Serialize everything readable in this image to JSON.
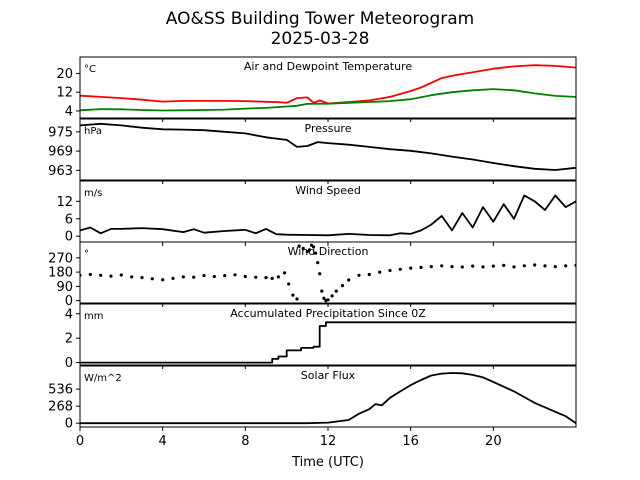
{
  "title_line1": "AO&SS Building Tower Meteorogram",
  "title_line2": "2025-03-28",
  "chart_data": {
    "type": "line",
    "xlabel": "Time (UTC)",
    "xlim": [
      0,
      24
    ],
    "xticks": [
      0,
      4,
      8,
      12,
      16,
      20
    ],
    "panels": [
      {
        "id": "temp",
        "title": "Air and Dewpoint Temperature",
        "unit": "°C",
        "ylim": [
          1,
          27
        ],
        "yticks": [
          4,
          12,
          20
        ],
        "series": [
          {
            "color": "#ff0000",
            "x": [
              0,
              1,
              2,
              3,
              4,
              5,
              6,
              7,
              8,
              9,
              9.5,
              10,
              10.5,
              11,
              11.3,
              11.6,
              12,
              12.5,
              13,
              14,
              15,
              16,
              16.5,
              17,
              17.5,
              18,
              19,
              20,
              21,
              22,
              23,
              24
            ],
            "y": [
              10.5,
              10,
              9.5,
              8.8,
              8,
              8.3,
              8.3,
              8.3,
              8.2,
              7.9,
              7.8,
              7.5,
              9.5,
              9.8,
              7.5,
              8.5,
              7.2,
              7.5,
              7.8,
              8.5,
              10,
              12.5,
              14,
              16,
              18,
              19,
              20.5,
              22,
              23,
              23.5,
              23.2,
              22.5
            ]
          },
          {
            "color": "#008000",
            "x": [
              0,
              1,
              2,
              3,
              4,
              5,
              6,
              7,
              8,
              9,
              10,
              10.5,
              11,
              12,
              13,
              14,
              15,
              16,
              17,
              18,
              19,
              20,
              21,
              22,
              23,
              24
            ],
            "y": [
              4.3,
              4.8,
              4.7,
              4.4,
              4.2,
              4.3,
              4.4,
              4.6,
              5,
              5.3,
              5.9,
              6.2,
              7,
              7.1,
              7.5,
              7.8,
              8.2,
              9,
              10.7,
              12,
              12.8,
              13.3,
              12.8,
              11.5,
              10.4,
              10
            ]
          }
        ]
      },
      {
        "id": "pressure",
        "title": "Pressure",
        "unit": "hPa",
        "ylim": [
          960,
          979
        ],
        "yticks": [
          963,
          969,
          975
        ],
        "series": [
          {
            "color": "#000000",
            "x": [
              0,
              1,
              2,
              3,
              4,
              5,
              6,
              7,
              8,
              9,
              9.5,
              10,
              10.5,
              11,
              11.5,
              12,
              13,
              14,
              15,
              16,
              17,
              18,
              19,
              20,
              21,
              22,
              23,
              24
            ],
            "y": [
              977,
              977.5,
              977,
              976.3,
              975.8,
              975.7,
              975.5,
              975,
              974.5,
              973.3,
              972.9,
              972.5,
              970.3,
              970.6,
              971.8,
              971.5,
              971,
              970.3,
              969.6,
              969.1,
              968.3,
              967.3,
              966.4,
              965.3,
              964.3,
              963.5,
              963.1,
              963.8
            ]
          }
        ]
      },
      {
        "id": "wind",
        "title": "Wind Speed",
        "unit": "m/s",
        "ylim": [
          -2,
          19
        ],
        "yticks": [
          0,
          6,
          12
        ],
        "series": [
          {
            "color": "#000000",
            "x": [
              0,
              0.5,
              1,
              1.5,
              2,
              3,
              4,
              5,
              5.5,
              6,
              7,
              8,
              8.5,
              9,
              9.5,
              10,
              11,
              12,
              13,
              14,
              15,
              15.5,
              16,
              16.5,
              17,
              17.5,
              18,
              18.5,
              19,
              19.5,
              20,
              20.5,
              21,
              21.5,
              22,
              22.5,
              23,
              23.5,
              24
            ],
            "y": [
              2,
              3,
              1,
              2.5,
              2.5,
              2.8,
              2.4,
              1.4,
              2.4,
              1.2,
              1.8,
              2.2,
              1,
              2.5,
              0.7,
              0.5,
              0.4,
              0.3,
              0.8,
              0.4,
              0.3,
              1,
              0.8,
              2,
              4,
              7,
              2,
              8,
              3,
              10,
              5,
              11,
              6,
              14,
              12,
              9,
              14,
              10,
              12
            ]
          }
        ]
      },
      {
        "id": "direction",
        "title": "Wind Direction",
        "unit": "°",
        "ylim": [
          -15,
          370
        ],
        "yticks": [
          0,
          90,
          180,
          270
        ],
        "series": [
          {
            "color": "#000000",
            "style": "dots",
            "x": [
              0,
              0.5,
              1,
              1.5,
              2,
              2.5,
              3,
              3.5,
              4,
              4.5,
              5,
              5.5,
              6,
              6.5,
              7,
              7.5,
              8,
              8.5,
              9,
              9.3,
              9.6,
              9.9,
              10.1,
              10.3,
              10.5,
              10.6,
              10.8,
              11,
              11.1,
              11.2,
              11.3,
              11.4,
              11.5,
              11.6,
              11.7,
              11.8,
              11.9,
              12,
              12.2,
              12.4,
              12.7,
              13,
              13.5,
              14,
              14.5,
              15,
              15.5,
              16,
              16.5,
              17,
              17.5,
              18,
              18.5,
              19,
              19.5,
              20,
              20.5,
              21,
              21.5,
              22,
              22.5,
              23,
              23.5,
              24
            ],
            "y": [
              160,
              165,
              160,
              155,
              162,
              150,
              145,
              138,
              132,
              140,
              150,
              148,
              158,
              152,
              158,
              163,
              152,
              148,
              145,
              140,
              150,
              175,
              105,
              35,
              10,
              345,
              330,
              310,
              320,
              350,
              340,
              300,
              240,
              170,
              60,
              15,
              0,
              5,
              30,
              60,
              95,
              130,
              160,
              165,
              180,
              190,
              198,
              205,
              210,
              215,
              220,
              215,
              212,
              218,
              213,
              218,
              222,
              213,
              220,
              225,
              219,
              215,
              220,
              222
            ]
          }
        ]
      },
      {
        "id": "precip",
        "title": "Accumulated Precipitation Since 0Z",
        "unit": "mm",
        "ylim": [
          -0.2,
          4.8
        ],
        "yticks": [
          0,
          2,
          4
        ],
        "series": [
          {
            "color": "#000000",
            "x": [
              0,
              9.3,
              9.3,
              9.6,
              9.6,
              10.0,
              10.0,
              10.7,
              10.7,
              11.3,
              11.3,
              11.6,
              11.6,
              11.9,
              11.9,
              24
            ],
            "y": [
              0,
              0,
              0.3,
              0.3,
              0.5,
              0.5,
              1.0,
              1.0,
              1.2,
              1.2,
              1.3,
              1.3,
              3.0,
              3.0,
              3.3,
              3.3
            ]
          }
        ]
      },
      {
        "id": "solar",
        "title": "Solar Flux",
        "unit": "W/m^2",
        "ylim": [
          -60,
          900
        ],
        "yticks": [
          0,
          268,
          536
        ],
        "series": [
          {
            "color": "#000000",
            "x": [
              0,
              11,
              12,
              13,
              13.5,
              14,
              14.3,
              14.6,
              15,
              15.5,
              16,
              16.5,
              17,
              17.5,
              18,
              18.5,
              19,
              19.5,
              20,
              21,
              22,
              23,
              23.5,
              24
            ],
            "y": [
              0,
              0,
              10,
              50,
              150,
              220,
              300,
              280,
              400,
              500,
              600,
              680,
              750,
              780,
              790,
              785,
              760,
              720,
              650,
              500,
              320,
              180,
              110,
              0
            ]
          }
        ]
      }
    ]
  }
}
